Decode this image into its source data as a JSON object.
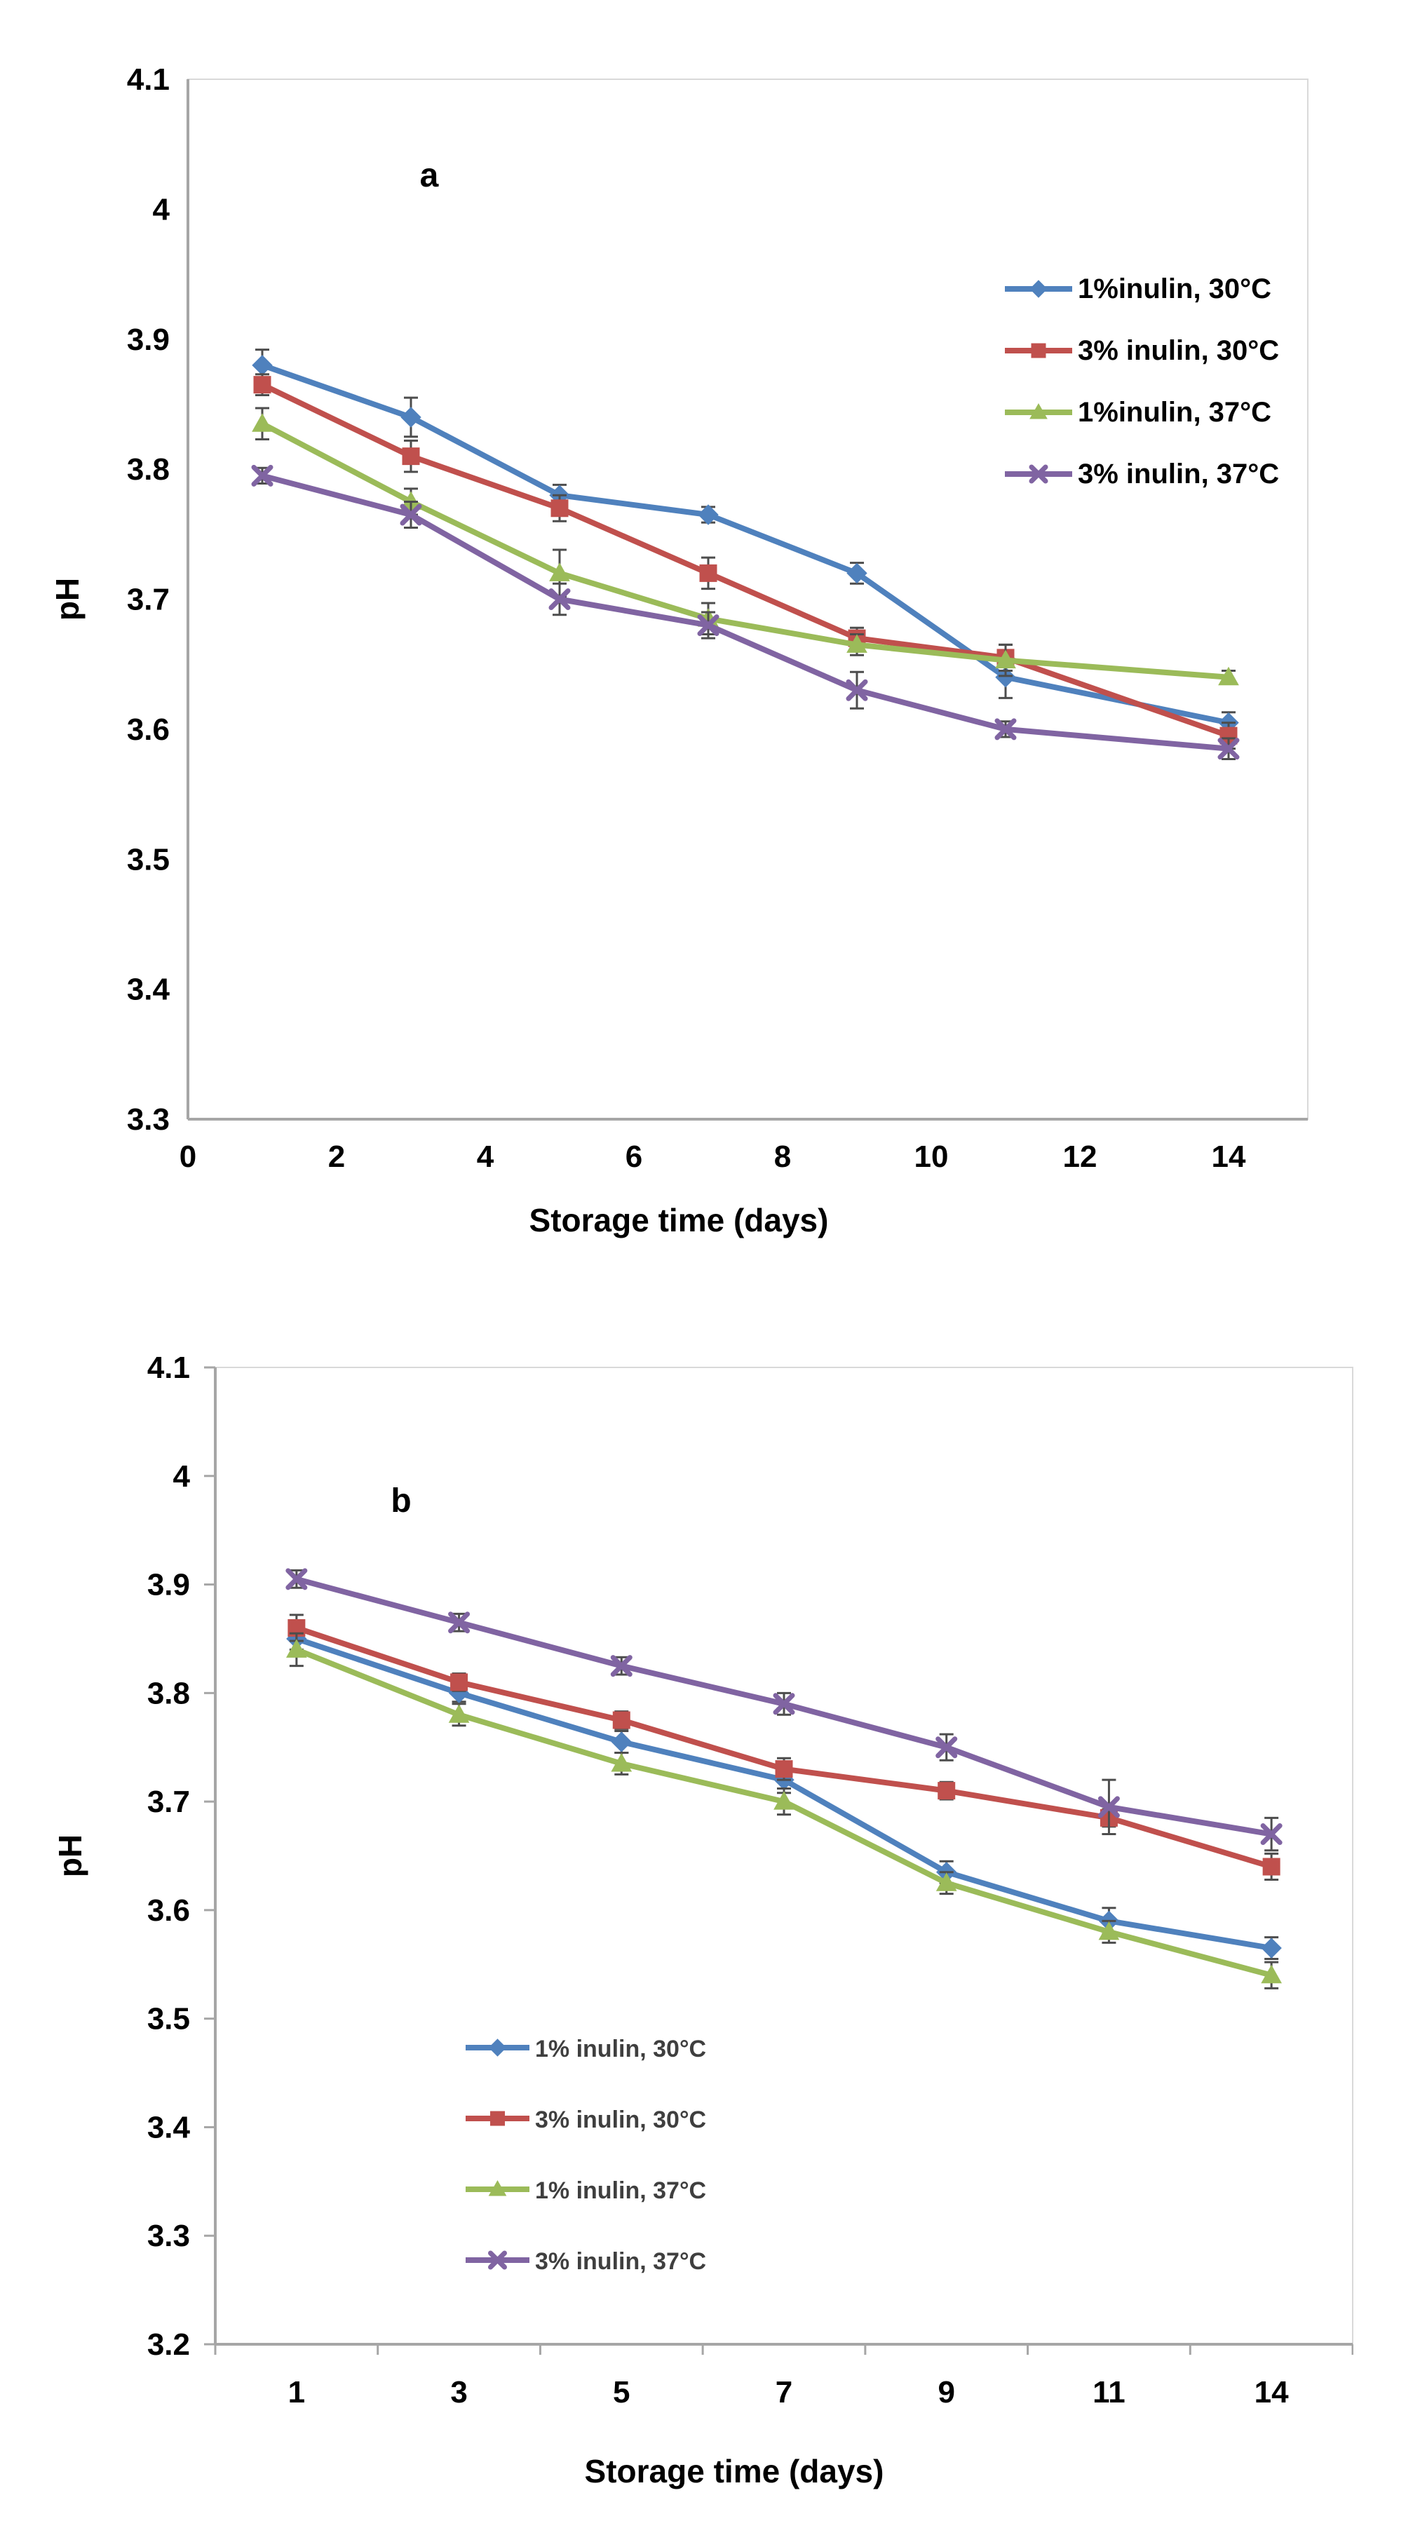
{
  "figure": {
    "background": "#ffffff",
    "axis_color": "#a6a6a6",
    "border_color": "#d9d9d9",
    "error_bar_color": "#4d4d4d",
    "tick_label_color": "#000000",
    "legend_a_text_color": "#000000",
    "legend_b_text_color": "#3f3f3f"
  },
  "chart_data": [
    {
      "id": "a",
      "type": "line",
      "panel_label": "a",
      "xlabel": "Storage time (days)",
      "ylabel": "pH",
      "legend_position": "top-right",
      "x_axis": {
        "kind": "numeric",
        "ticks": [
          0,
          2,
          4,
          6,
          8,
          10,
          12,
          14
        ],
        "tick_labels": [
          "0",
          "2",
          "4",
          "6",
          "8",
          "10",
          "12",
          "14"
        ],
        "range": [
          0,
          15
        ]
      },
      "y_axis": {
        "range": [
          3.3,
          4.1
        ],
        "ticks": [
          3.3,
          3.4,
          3.5,
          3.6,
          3.7,
          3.8,
          3.9,
          4.0,
          4.1
        ],
        "tick_labels": [
          "3.3",
          "3.4",
          "3.5",
          "3.6",
          "3.7",
          "3.8",
          "3.9",
          "4",
          "4.1"
        ]
      },
      "days": [
        1,
        3,
        5,
        7,
        9,
        11,
        14
      ],
      "grid": false,
      "series": [
        {
          "name": "1%inulin, 30°C",
          "color": "#4f81bd",
          "marker": "diamond",
          "values": [
            3.88,
            3.84,
            3.78,
            3.765,
            3.72,
            3.64,
            3.605
          ],
          "errors": [
            0.012,
            0.015,
            0.008,
            0.006,
            0.008,
            0.016,
            0.008
          ]
        },
        {
          "name": "3% inulin, 30°C",
          "color": "#c0504d",
          "marker": "square",
          "values": [
            3.865,
            3.81,
            3.77,
            3.72,
            3.67,
            3.655,
            3.595
          ],
          "errors": [
            0.008,
            0.012,
            0.01,
            0.012,
            0.008,
            0.01,
            0.01
          ]
        },
        {
          "name": "1%inulin, 37°C",
          "color": "#9bbb59",
          "marker": "triangle",
          "values": [
            3.835,
            3.775,
            3.72,
            3.685,
            3.665,
            3.653,
            3.64
          ],
          "errors": [
            0.012,
            0.01,
            0.018,
            0.012,
            0.008,
            0.012,
            0.005
          ]
        },
        {
          "name": "3% inulin, 37°C",
          "color": "#8064a2",
          "marker": "x",
          "values": [
            3.795,
            3.765,
            3.7,
            3.68,
            3.63,
            3.6,
            3.585
          ],
          "errors": [
            0.006,
            0.01,
            0.012,
            0.01,
            0.014,
            0.006,
            0.008
          ]
        }
      ]
    },
    {
      "id": "b",
      "type": "line",
      "panel_label": "b",
      "xlabel": "Storage time (days)",
      "ylabel": "pH",
      "legend_position": "bottom-left",
      "x_axis": {
        "kind": "category",
        "tick_labels": [
          "1",
          "3",
          "5",
          "7",
          "9",
          "11",
          "14"
        ]
      },
      "y_axis": {
        "range": [
          3.2,
          4.1
        ],
        "ticks": [
          3.2,
          3.3,
          3.4,
          3.5,
          3.6,
          3.7,
          3.8,
          3.9,
          4.0,
          4.1
        ],
        "tick_labels": [
          "3.2",
          "3.3",
          "3.4",
          "3.5",
          "3.6",
          "3.7",
          "3.8",
          "3.9",
          "4",
          "4.1"
        ]
      },
      "days": [
        1,
        3,
        5,
        7,
        9,
        11,
        14
      ],
      "grid": false,
      "series": [
        {
          "name": "1% inulin, 30°C",
          "color": "#4f81bd",
          "marker": "diamond",
          "values": [
            3.85,
            3.8,
            3.755,
            3.72,
            3.635,
            3.59,
            3.565
          ],
          "errors": [
            0.01,
            0.008,
            0.01,
            0.012,
            0.01,
            0.012,
            0.01
          ]
        },
        {
          "name": "3% inulin, 30°C",
          "color": "#c0504d",
          "marker": "square",
          "values": [
            3.86,
            3.81,
            3.775,
            3.73,
            3.71,
            3.685,
            3.64
          ],
          "errors": [
            0.012,
            0.008,
            0.008,
            0.01,
            0.008,
            0.008,
            0.012
          ]
        },
        {
          "name": "1% inulin, 37°C",
          "color": "#9bbb59",
          "marker": "triangle",
          "values": [
            3.84,
            3.78,
            3.735,
            3.7,
            3.625,
            3.58,
            3.54
          ],
          "errors": [
            0.015,
            0.01,
            0.01,
            0.012,
            0.01,
            0.01,
            0.012
          ]
        },
        {
          "name": "3% inulin, 37°C",
          "color": "#8064a2",
          "marker": "x",
          "values": [
            3.905,
            3.865,
            3.825,
            3.79,
            3.75,
            3.695,
            3.67
          ],
          "errors": [
            0.008,
            0.008,
            0.008,
            0.01,
            0.012,
            0.025,
            0.015
          ]
        }
      ]
    }
  ]
}
